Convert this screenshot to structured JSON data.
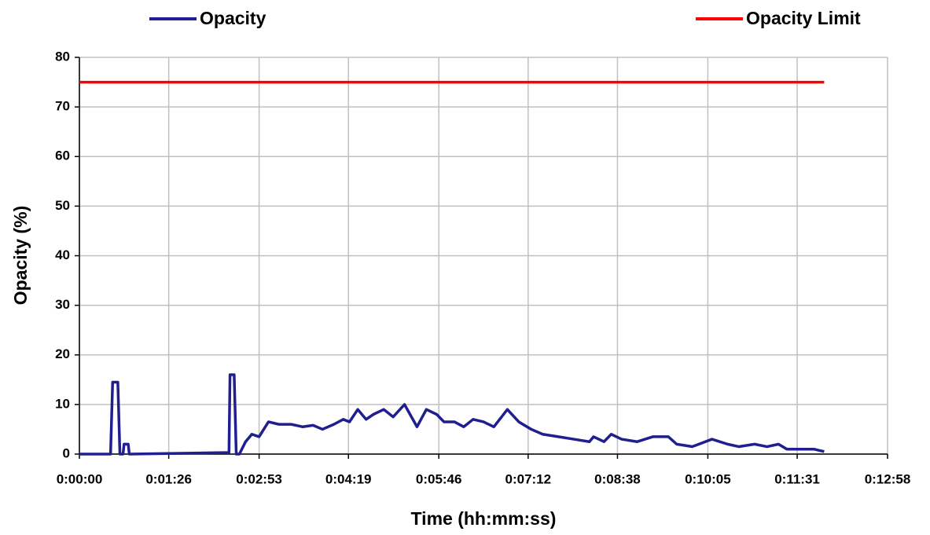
{
  "chart_data": {
    "type": "line",
    "xlabel": "Time (hh:mm:ss)",
    "ylabel": "Opacity (%)",
    "xlim": [
      0,
      778
    ],
    "ylim": [
      0,
      80
    ],
    "xticks": [
      {
        "value": 0,
        "label": "0:00:00"
      },
      {
        "value": 86,
        "label": "0:01:26"
      },
      {
        "value": 173,
        "label": "0:02:53"
      },
      {
        "value": 259,
        "label": "0:04:19"
      },
      {
        "value": 346,
        "label": "0:05:46"
      },
      {
        "value": 432,
        "label": "0:07:12"
      },
      {
        "value": 518,
        "label": "0:08:38"
      },
      {
        "value": 605,
        "label": "0:10:05"
      },
      {
        "value": 691,
        "label": "0:11:31"
      },
      {
        "value": 778,
        "label": "0:12:58"
      }
    ],
    "yticks": [
      0,
      10,
      20,
      30,
      40,
      50,
      60,
      70,
      80
    ],
    "grid": true,
    "series": [
      {
        "name": "Opacity",
        "color": "#1f1f8f",
        "x": [
          0,
          30,
          32,
          37,
          39,
          42,
          43,
          47,
          48,
          139,
          144,
          145,
          149,
          151,
          154,
          160,
          166,
          173,
          182,
          192,
          204,
          215,
          225,
          234,
          245,
          254,
          260,
          268,
          276,
          283,
          293,
          302,
          313,
          325,
          334,
          344,
          351,
          361,
          370,
          379,
          389,
          399,
          412,
          423,
          435,
          446,
          461,
          476,
          491,
          495,
          505,
          512,
          522,
          537,
          552,
          567,
          575,
          590,
          609,
          624,
          635,
          650,
          662,
          673,
          681,
          696,
          707,
          717
        ],
        "values": [
          0,
          0,
          14.5,
          14.5,
          0,
          0,
          2,
          2,
          0,
          0.3,
          0.3,
          16,
          16,
          0,
          0,
          2.5,
          4,
          3.5,
          6.5,
          6,
          6,
          5.5,
          5.8,
          5,
          6,
          7,
          6.5,
          9,
          7,
          8,
          9,
          7.5,
          10,
          5.5,
          9,
          8,
          6.5,
          6.5,
          5.5,
          7,
          6.5,
          5.5,
          9,
          6.5,
          5,
          4,
          3.5,
          3,
          2.5,
          3.5,
          2.5,
          4,
          3,
          2.5,
          3.5,
          3.5,
          2,
          1.5,
          3,
          2,
          1.5,
          2,
          1.5,
          2,
          1,
          1,
          1,
          0.5
        ]
      },
      {
        "name": "Opacity Limit",
        "color": "#ff0000",
        "x": [
          0,
          717
        ],
        "values": [
          75,
          75
        ]
      }
    ]
  }
}
